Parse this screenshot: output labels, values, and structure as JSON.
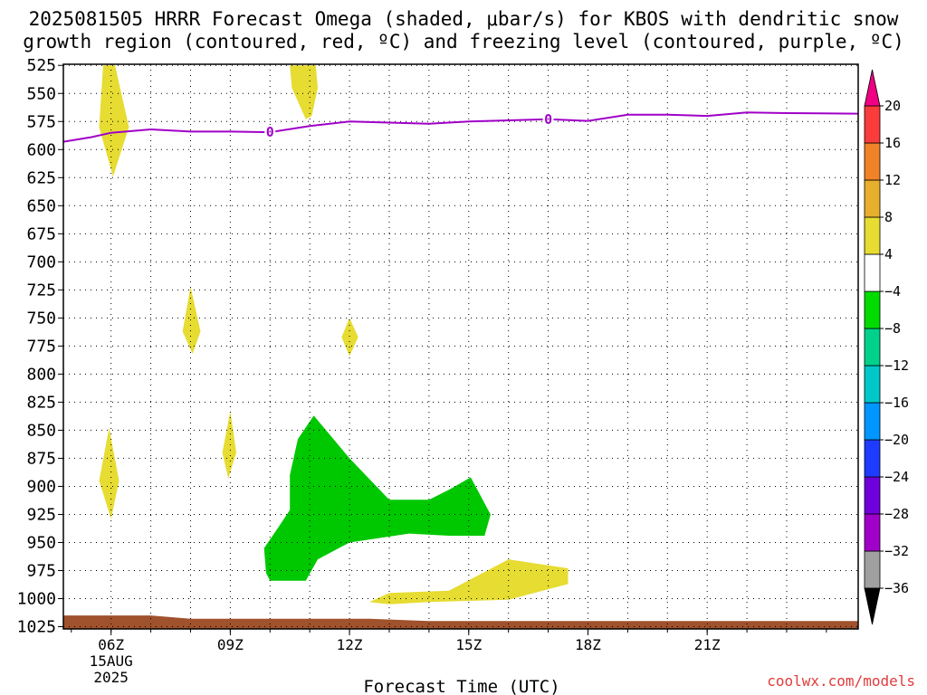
{
  "title_line1": "2025081505 HRRR Forecast Omega (shaded, μbar/s) for KBOS with dendritic snow",
  "title_line2": "growth region (contoured, red, ºC) and freezing level (contoured, purple, ºC)",
  "credit": "coolwx.com/models",
  "chart_data": {
    "type": "contour",
    "xlabel": "Forecast Time (UTC)",
    "ylabel": "",
    "x_range_hours": [
      4.8,
      24.8
    ],
    "y_axis": "pressure (mb), inverted",
    "y_range": [
      1027,
      524
    ],
    "x_ticks": [
      {
        "hour": 6,
        "label": "06Z",
        "sub1": "15AUG",
        "sub2": "2025"
      },
      {
        "hour": 9,
        "label": "09Z"
      },
      {
        "hour": 12,
        "label": "12Z"
      },
      {
        "hour": 15,
        "label": "15Z"
      },
      {
        "hour": 18,
        "label": "18Z"
      },
      {
        "hour": 21,
        "label": "21Z"
      }
    ],
    "y_ticks": [
      525,
      550,
      575,
      600,
      625,
      650,
      675,
      700,
      725,
      750,
      775,
      800,
      825,
      850,
      875,
      900,
      925,
      950,
      975,
      1000,
      1025
    ],
    "grid": true,
    "freezing_level": {
      "color": "#a000c8",
      "label": "0",
      "points": [
        [
          4.8,
          593
        ],
        [
          5.5,
          589
        ],
        [
          6.0,
          585
        ],
        [
          7.0,
          582
        ],
        [
          8.0,
          584
        ],
        [
          9.0,
          584
        ],
        [
          10.0,
          584.5
        ],
        [
          11.0,
          579
        ],
        [
          12.0,
          575
        ],
        [
          13.0,
          576
        ],
        [
          14.0,
          577
        ],
        [
          15.0,
          575
        ],
        [
          16.0,
          574
        ],
        [
          17.0,
          573
        ],
        [
          18.0,
          574.5
        ],
        [
          19.0,
          569
        ],
        [
          20.0,
          569
        ],
        [
          21.0,
          570
        ],
        [
          22.0,
          567
        ],
        [
          23.0,
          567.5
        ],
        [
          24.8,
          568
        ]
      ]
    },
    "omega_regions": [
      {
        "value_class": "4 to 8",
        "color": "#e6dc32",
        "points": [
          [
            5.8,
            525
          ],
          [
            6.1,
            525
          ],
          [
            6.45,
            580
          ],
          [
            6.05,
            624
          ],
          [
            5.7,
            580
          ]
        ]
      },
      {
        "value_class": "4 to 8",
        "color": "#e6dc32",
        "points": [
          [
            10.5,
            525
          ],
          [
            11.15,
            525
          ],
          [
            11.2,
            545
          ],
          [
            11.05,
            570
          ],
          [
            10.9,
            573
          ],
          [
            10.55,
            545
          ]
        ]
      },
      {
        "value_class": "4 to 8",
        "color": "#e6dc32",
        "points": [
          [
            8.0,
            722
          ],
          [
            8.25,
            762
          ],
          [
            8.05,
            782
          ],
          [
            7.8,
            762
          ]
        ]
      },
      {
        "value_class": "4 to 8",
        "color": "#e6dc32",
        "points": [
          [
            12.0,
            750
          ],
          [
            12.22,
            767
          ],
          [
            12.0,
            784
          ],
          [
            11.8,
            767
          ]
        ]
      },
      {
        "value_class": "4 to 8",
        "color": "#e6dc32",
        "points": [
          [
            9.0,
            833
          ],
          [
            9.15,
            870
          ],
          [
            8.95,
            893
          ],
          [
            8.8,
            870
          ]
        ]
      },
      {
        "value_class": "4 to 8",
        "color": "#e6dc32",
        "points": [
          [
            5.95,
            848
          ],
          [
            6.2,
            895
          ],
          [
            6.0,
            929
          ],
          [
            5.7,
            895
          ]
        ]
      },
      {
        "value_class": "4 to 8",
        "color": "#e6dc32",
        "points": [
          [
            12.5,
            1003
          ],
          [
            13.0,
            995
          ],
          [
            14.5,
            993
          ],
          [
            16.0,
            965
          ],
          [
            17.5,
            973
          ],
          [
            17.5,
            987
          ],
          [
            16.0,
            1001
          ],
          [
            14.0,
            1003
          ],
          [
            13.0,
            1005
          ]
        ]
      },
      {
        "value_class": "-8 to -4",
        "color": "#00c800",
        "points": [
          [
            10.0,
            984
          ],
          [
            10.9,
            984
          ],
          [
            11.2,
            965
          ],
          [
            12.0,
            950
          ],
          [
            13.5,
            942
          ],
          [
            14.5,
            944
          ],
          [
            15.4,
            944
          ],
          [
            15.55,
            925
          ],
          [
            15.05,
            892
          ],
          [
            14.5,
            903
          ],
          [
            14.0,
            912
          ],
          [
            13.0,
            912
          ],
          [
            12.0,
            875
          ],
          [
            11.1,
            837
          ],
          [
            10.7,
            858
          ],
          [
            10.5,
            890
          ],
          [
            10.5,
            921
          ],
          [
            10.2,
            937
          ],
          [
            9.85,
            955
          ],
          [
            9.9,
            977
          ]
        ]
      }
    ],
    "ground": {
      "color": "#a0522d",
      "points": [
        [
          4.8,
          1015
        ],
        [
          7.0,
          1015
        ],
        [
          8.0,
          1018
        ],
        [
          12.5,
          1018
        ],
        [
          14.0,
          1020
        ],
        [
          24.8,
          1020
        ],
        [
          24.8,
          1027
        ],
        [
          4.8,
          1027
        ]
      ]
    },
    "colorbar": {
      "bins": [
        {
          "from": -40,
          "to": -36,
          "color": "#000000"
        },
        {
          "from": -36,
          "to": -32,
          "color": "#a0a0a0"
        },
        {
          "from": -32,
          "to": -28,
          "color": "#a000c8"
        },
        {
          "from": -28,
          "to": -24,
          "color": "#6e00dc"
        },
        {
          "from": -24,
          "to": -20,
          "color": "#1e3cff"
        },
        {
          "from": -20,
          "to": -16,
          "color": "#0096ff"
        },
        {
          "from": -16,
          "to": -12,
          "color": "#00c8c8"
        },
        {
          "from": -12,
          "to": -8,
          "color": "#00d28c"
        },
        {
          "from": -8,
          "to": -4,
          "color": "#00dc00"
        },
        {
          "from": -4,
          "to": 4,
          "color": "#ffffff"
        },
        {
          "from": 4,
          "to": 8,
          "color": "#e6dc32"
        },
        {
          "from": 8,
          "to": 12,
          "color": "#e6af2d"
        },
        {
          "from": 12,
          "to": 16,
          "color": "#f08228"
        },
        {
          "from": 16,
          "to": 20,
          "color": "#fa3c3c"
        },
        {
          "from": 20,
          "to": 24,
          "color": "#f00082"
        }
      ],
      "labels": [
        "20",
        "16",
        "12",
        "8",
        "4",
        "-4",
        "-8",
        "-12",
        "-16",
        "-20",
        "-24",
        "-28",
        "-32",
        "-36"
      ]
    }
  }
}
